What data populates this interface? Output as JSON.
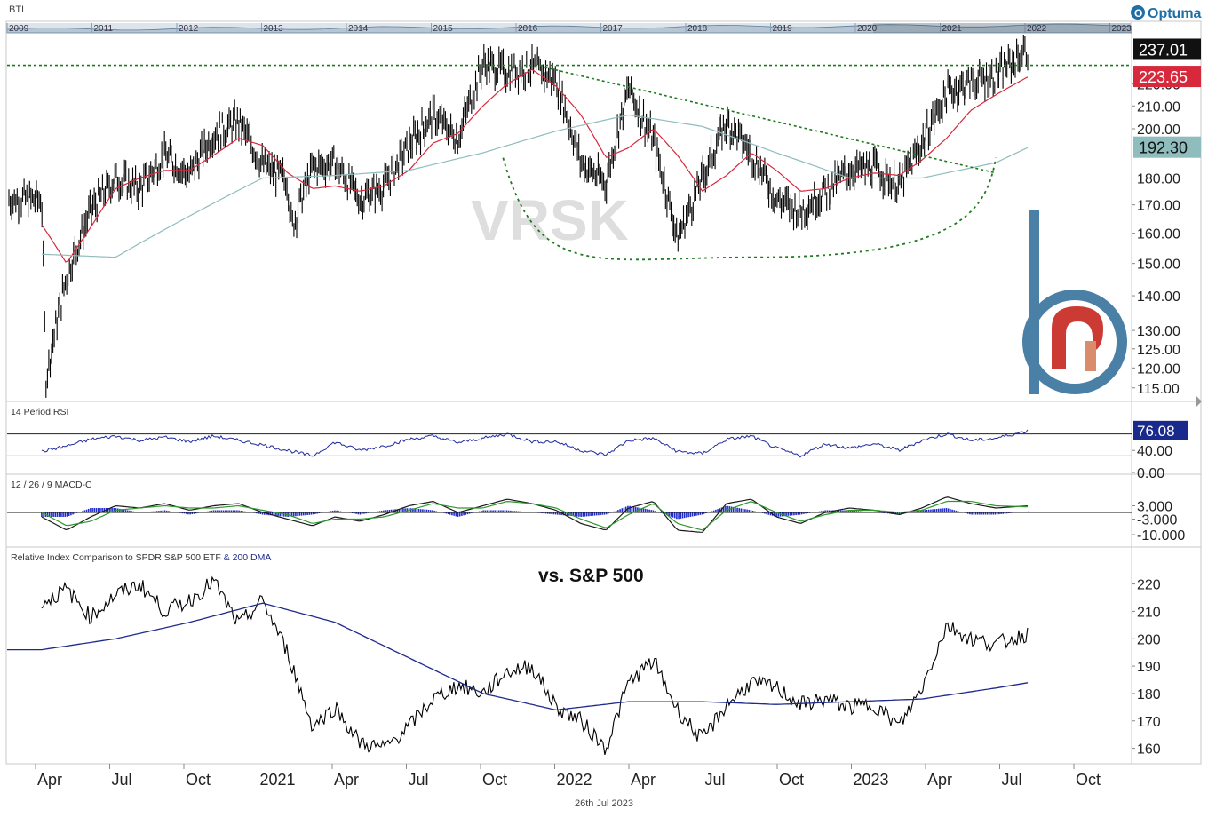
{
  "ticker_label": "BTI",
  "brand": "Optuma",
  "watermark": "VRSK",
  "footer_date": "26th Jul 2023",
  "timeline": {
    "years": [
      "2009",
      "2011",
      "2012",
      "2013",
      "2014",
      "2015",
      "2016",
      "2017",
      "2018",
      "2019",
      "2020",
      "2021",
      "2022",
      "2023"
    ]
  },
  "x_axis": {
    "labels": [
      "Apr",
      "Jul",
      "Oct",
      "2021",
      "Apr",
      "Jul",
      "Oct",
      "2022",
      "Apr",
      "Jul",
      "Oct",
      "2023",
      "Apr",
      "Jul",
      "Oct"
    ]
  },
  "chart_data": [
    {
      "type": "line",
      "panel": "price",
      "style": "bar",
      "y_ticks": [
        "115.00",
        "120.00",
        "125.00",
        "130.00",
        "140.00",
        "150.00",
        "160.00",
        "170.00",
        "180.00",
        "200.00",
        "210.00",
        "220.00"
      ],
      "ylim": [
        113,
        245
      ],
      "y_scale": "log",
      "price_labels": [
        {
          "text": "237.01",
          "value": 237.01,
          "color": "#111111"
        },
        {
          "text": "223.65",
          "value": 223.65,
          "color": "#d8283c"
        },
        {
          "text": "192.30",
          "value": 192.3,
          "color": "#8fbcbc"
        }
      ],
      "series": [
        {
          "name": "",
          "color": "#000000",
          "x": [
            "2020-03",
            "2020-03-20",
            "2020-04",
            "2020-05",
            "2020-06",
            "2020-07",
            "2020-08",
            "2020-09",
            "2020-10",
            "2020-11",
            "2020-12",
            "2021-01",
            "2021-01-20",
            "2021-02",
            "2021-03",
            "2021-04",
            "2021-05",
            "2021-06",
            "2021-07",
            "2021-08",
            "2021-09",
            "2021-10",
            "2021-11",
            "2021-12",
            "2022-01",
            "2022-02",
            "2022-03",
            "2022-04",
            "2022-05",
            "2022-06",
            "2022-07",
            "2022-08",
            "2022-09",
            "2022-10",
            "2022-11",
            "2022-12",
            "2023-01",
            "2023-02",
            "2023-03",
            "2023-04",
            "2023-05",
            "2023-06",
            "2023-07-26"
          ],
          "y": [
            172,
            117,
            146,
            168,
            180,
            176,
            189,
            181,
            198,
            203,
            185,
            179,
            162,
            184,
            186,
            172,
            177,
            193,
            206,
            196,
            230,
            226,
            228,
            222,
            186,
            178,
            218,
            195,
            158,
            180,
            203,
            190,
            172,
            168,
            175,
            183,
            184,
            177,
            194,
            216,
            221,
            224,
            237
          ]
        },
        {
          "name": "",
          "color": "#d8283c",
          "x": [
            "2020-03",
            "2020-04",
            "2020-05",
            "2020-06",
            "2020-07",
            "2020-08",
            "2020-09",
            "2020-10",
            "2020-11",
            "2020-12",
            "2021-01",
            "2021-02",
            "2021-03",
            "2021-04",
            "2021-05",
            "2021-06",
            "2021-07",
            "2021-08",
            "2021-09",
            "2021-10",
            "2021-11",
            "2021-12",
            "2022-01",
            "2022-02",
            "2022-03",
            "2022-04",
            "2022-05",
            "2022-06",
            "2022-07",
            "2022-08",
            "2022-09",
            "2022-10",
            "2022-11",
            "2022-12",
            "2023-01",
            "2023-02",
            "2023-03",
            "2023-04",
            "2023-05",
            "2023-06",
            "2023-07-26"
          ],
          "y": [
            163,
            150,
            162,
            176,
            180,
            183,
            183,
            189,
            196,
            193,
            182,
            176,
            177,
            175,
            177,
            183,
            194,
            198,
            210,
            220,
            227,
            219,
            206,
            188,
            192,
            200,
            189,
            175,
            181,
            190,
            183,
            175,
            176,
            180,
            182,
            181,
            187,
            196,
            208,
            215,
            223.65
          ]
        },
        {
          "name": "",
          "color": "#8fbcbc",
          "x": [
            "2020-03",
            "2020-06",
            "2020-09",
            "2020-12",
            "2021-03",
            "2021-06",
            "2021-09",
            "2021-12",
            "2022-03",
            "2022-06",
            "2022-09",
            "2022-12",
            "2023-03",
            "2023-06",
            "2023-07-26"
          ],
          "y": [
            153,
            152,
            166,
            180,
            181,
            183,
            190,
            199,
            206,
            201,
            190,
            180,
            180,
            186,
            192.3
          ]
        }
      ],
      "annotations": {
        "resistance": 229,
        "trendline": [
          {
            "x": "2021-12-01",
            "y": 228
          },
          {
            "x": "2023-06-15",
            "y": 182
          }
        ],
        "saucer": {
          "start": {
            "x": "2021-10-10",
            "y": 188
          },
          "low": {
            "x": "2022-08-20",
            "y": 152
          },
          "end": {
            "x": "2023-06-15",
            "y": 188
          }
        }
      }
    },
    {
      "type": "line",
      "panel": "rsi",
      "title": "14 Period RSI",
      "value_label": "76.08",
      "y_ticks": [
        "40.00",
        "0.00"
      ],
      "ylim": [
        0,
        100
      ],
      "levels": [
        70,
        30
      ],
      "series": [
        {
          "name": "",
          "color": "#1f2aa0",
          "x": [
            "2020-03",
            "2020-04",
            "2020-05",
            "2020-06",
            "2020-07",
            "2020-08",
            "2020-09",
            "2020-10",
            "2020-11",
            "2020-12",
            "2021-01",
            "2021-02",
            "2021-03",
            "2021-04",
            "2021-05",
            "2021-06",
            "2021-07",
            "2021-08",
            "2021-09",
            "2021-10",
            "2021-11",
            "2021-12",
            "2022-01",
            "2022-02",
            "2022-03",
            "2022-04",
            "2022-05",
            "2022-06",
            "2022-07",
            "2022-08",
            "2022-09",
            "2022-10",
            "2022-11",
            "2022-12",
            "2023-01",
            "2023-02",
            "2023-03",
            "2023-04",
            "2023-05",
            "2023-06",
            "2023-07-26"
          ],
          "y": [
            38,
            48,
            60,
            66,
            58,
            64,
            56,
            66,
            58,
            50,
            40,
            30,
            55,
            40,
            48,
            60,
            66,
            54,
            62,
            70,
            56,
            56,
            40,
            32,
            58,
            62,
            38,
            34,
            60,
            66,
            44,
            30,
            52,
            44,
            52,
            40,
            58,
            70,
            58,
            62,
            76.08
          ]
        }
      ]
    },
    {
      "type": "bar",
      "panel": "macd",
      "title": "12 / 26 / 9 MACD-C",
      "y_ticks": [
        "3.000",
        "-3.000",
        "-10.000"
      ],
      "ylim": [
        -14,
        10
      ],
      "series": [
        {
          "name": "",
          "color": "#1a1a1a",
          "x": [
            "2020-03",
            "2020-04",
            "2020-05",
            "2020-06",
            "2020-07",
            "2020-08",
            "2020-09",
            "2020-10",
            "2020-11",
            "2020-12",
            "2021-01",
            "2021-02",
            "2021-03",
            "2021-04",
            "2021-05",
            "2021-06",
            "2021-07",
            "2021-08",
            "2021-09",
            "2021-10",
            "2021-11",
            "2021-12",
            "2022-01",
            "2022-02",
            "2022-03",
            "2022-04",
            "2022-05",
            "2022-06",
            "2022-07",
            "2022-08",
            "2022-09",
            "2022-10",
            "2022-11",
            "2022-12",
            "2023-01",
            "2023-02",
            "2023-03",
            "2023-04",
            "2023-05",
            "2023-06",
            "2023-07-26"
          ],
          "y": [
            -2,
            -8,
            -2,
            3,
            2,
            4,
            1,
            3,
            4,
            0,
            -3,
            -6,
            -2,
            -4,
            -1,
            3,
            5,
            0,
            3,
            6,
            4,
            1,
            -5,
            -8,
            2,
            5,
            -8,
            -9,
            4,
            6,
            -2,
            -5,
            0,
            2,
            1,
            -1,
            2,
            7,
            4,
            2,
            3
          ]
        },
        {
          "name": "",
          "color": "#2e9a2e",
          "x": [
            "2020-03",
            "2020-04",
            "2020-05",
            "2020-06",
            "2020-07",
            "2020-08",
            "2020-09",
            "2020-10",
            "2020-11",
            "2020-12",
            "2021-01",
            "2021-02",
            "2021-03",
            "2021-04",
            "2021-05",
            "2021-06",
            "2021-07",
            "2021-08",
            "2021-09",
            "2021-10",
            "2021-11",
            "2021-12",
            "2022-01",
            "2022-02",
            "2022-03",
            "2022-04",
            "2022-05",
            "2022-06",
            "2022-07",
            "2022-08",
            "2022-09",
            "2022-10",
            "2022-11",
            "2022-12",
            "2023-01",
            "2023-02",
            "2023-03",
            "2023-04",
            "2023-05",
            "2023-06",
            "2023-07-26"
          ],
          "y": [
            0,
            -6,
            -4,
            1,
            2,
            3,
            2,
            2,
            3,
            1,
            -1,
            -5,
            -3,
            -3,
            -2,
            1,
            4,
            2,
            2,
            5,
            4,
            2,
            -3,
            -7,
            -1,
            4,
            -5,
            -8,
            1,
            5,
            0,
            -4,
            -1,
            1,
            1,
            0,
            1,
            5,
            5,
            3,
            2.5
          ]
        },
        {
          "name": "",
          "color": "#1f2ad0",
          "x": [
            "2020-03",
            "2020-04",
            "2020-05",
            "2020-06",
            "2020-07",
            "2020-08",
            "2020-09",
            "2020-10",
            "2020-11",
            "2020-12",
            "2021-01",
            "2021-02",
            "2021-03",
            "2021-04",
            "2021-05",
            "2021-06",
            "2021-07",
            "2021-08",
            "2021-09",
            "2021-10",
            "2021-11",
            "2021-12",
            "2022-01",
            "2022-02",
            "2022-03",
            "2022-04",
            "2022-05",
            "2022-06",
            "2022-07",
            "2022-08",
            "2022-09",
            "2022-10",
            "2022-11",
            "2022-12",
            "2023-01",
            "2023-02",
            "2023-03",
            "2023-04",
            "2023-05",
            "2023-06",
            "2023-07-26"
          ],
          "y": [
            -2,
            -2,
            2,
            2,
            0,
            1,
            -1,
            1,
            1,
            -1,
            -2,
            -1,
            1,
            -1,
            1,
            2,
            1,
            -2,
            1,
            1,
            0,
            -1,
            -2,
            -1,
            3,
            1,
            -3,
            -1,
            3,
            1,
            -2,
            -1,
            1,
            1,
            0,
            -1,
            1,
            2,
            -1,
            -1,
            0.5
          ]
        }
      ]
    },
    {
      "type": "line",
      "panel": "relative",
      "title": "Relative Index Comparison to SPDR S&P 500 ETF",
      "title_suffix": "& 200 DMA",
      "annotation": "vs. S&P 500",
      "y_ticks": [
        "160",
        "170",
        "180",
        "190",
        "200",
        "210",
        "220"
      ],
      "ylim": [
        155,
        227
      ],
      "series": [
        {
          "name": "",
          "color": "#000000",
          "x": [
            "2020-03",
            "2020-04",
            "2020-05",
            "2020-06",
            "2020-07",
            "2020-08",
            "2020-09",
            "2020-10",
            "2020-11",
            "2020-12",
            "2021-01",
            "2021-02",
            "2021-03",
            "2021-04",
            "2021-05",
            "2021-06",
            "2021-07",
            "2021-08",
            "2021-09",
            "2021-10",
            "2021-11",
            "2021-12",
            "2022-01",
            "2022-02",
            "2022-03",
            "2022-04",
            "2022-05",
            "2022-06",
            "2022-07",
            "2022-08",
            "2022-09",
            "2022-10",
            "2022-11",
            "2022-12",
            "2023-01",
            "2023-02",
            "2023-03",
            "2023-04",
            "2023-05",
            "2023-06",
            "2023-07-26"
          ],
          "y": [
            213,
            218,
            208,
            216,
            220,
            210,
            214,
            221,
            205,
            214,
            195,
            168,
            175,
            162,
            160,
            168,
            178,
            183,
            180,
            188,
            190,
            175,
            170,
            160,
            184,
            192,
            174,
            163,
            176,
            184,
            182,
            176,
            178,
            175,
            176,
            168,
            182,
            205,
            200,
            198,
            202
          ]
        },
        {
          "name": "",
          "color": "#1f2a8c",
          "x": [
            "2020-03",
            "2020-06",
            "2020-09",
            "2020-12",
            "2021-03",
            "2021-06",
            "2021-09",
            "2021-12",
            "2022-03",
            "2022-06",
            "2022-09",
            "2022-12",
            "2023-03",
            "2023-06",
            "2023-07-26"
          ],
          "y": [
            196,
            200,
            206,
            213,
            206,
            193,
            180,
            174,
            177,
            177,
            176,
            177,
            178,
            182,
            184
          ]
        }
      ]
    }
  ]
}
